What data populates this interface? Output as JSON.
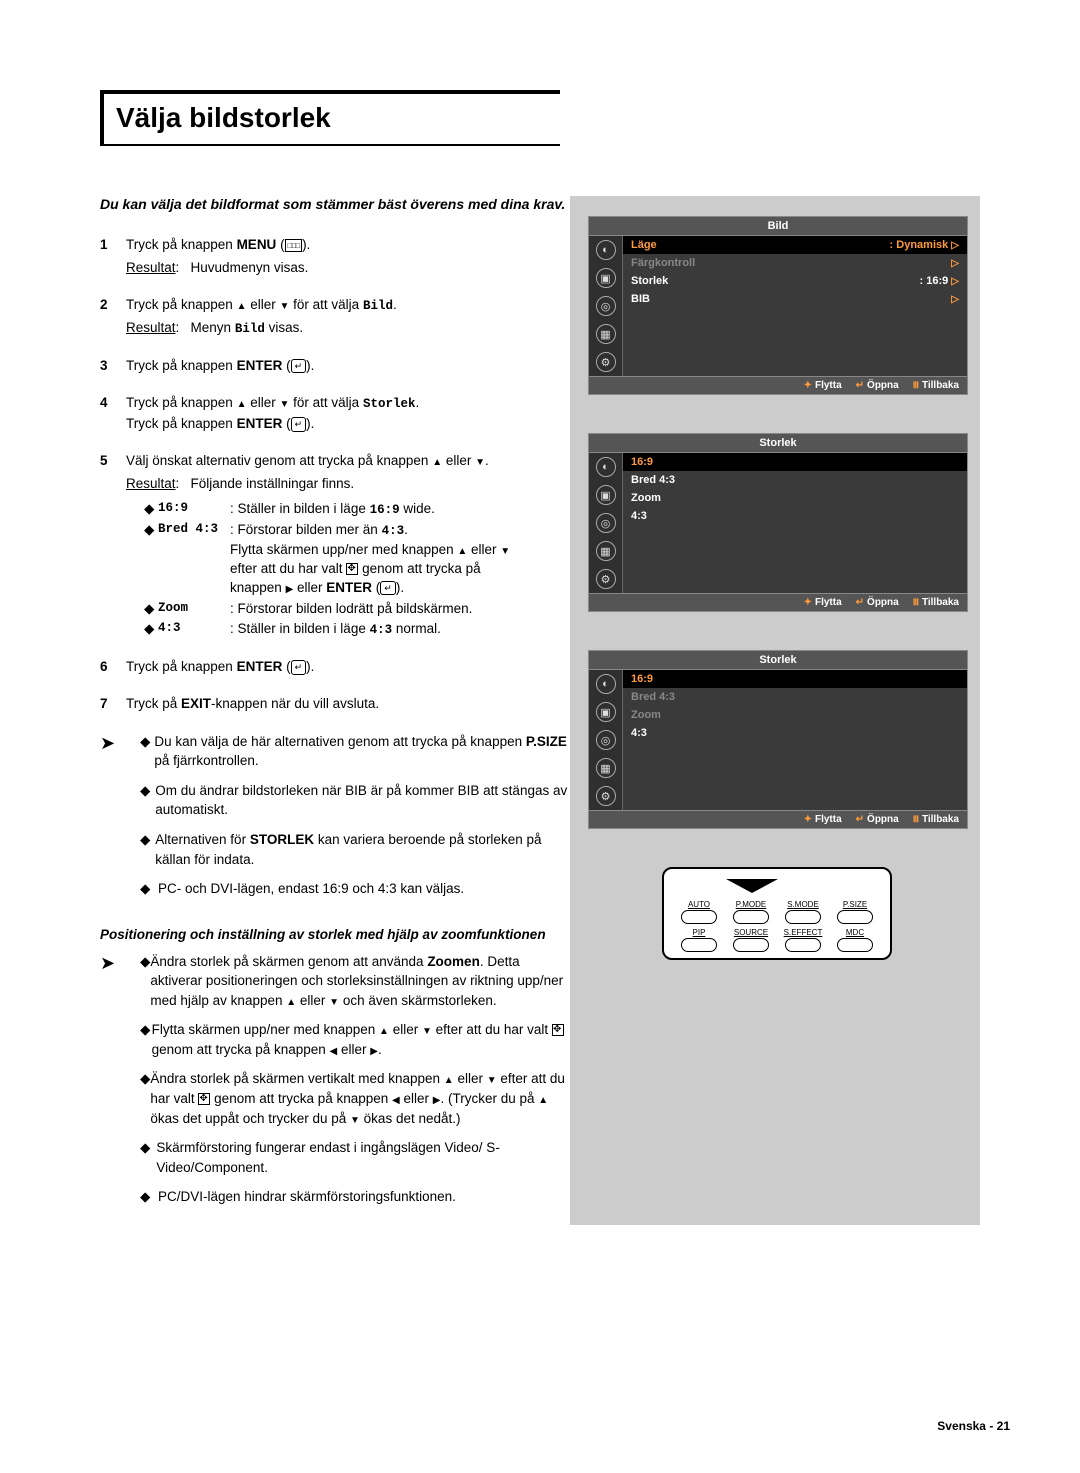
{
  "title": "Välja bildstorlek",
  "intro": "Du kan välja det bildformat som stämmer bäst överens med dina krav.",
  "steps": {
    "s1": {
      "num": "1",
      "l1a": "Tryck på knappen ",
      "l1b": "MENU",
      "l1c": " (",
      "l1d": ").",
      "res_lbl": "Resultat",
      "res": "Huvudmenyn visas."
    },
    "s2": {
      "num": "2",
      "l1a": "Tryck på knappen ",
      "l1b": " eller ",
      "l1c": " för att välja ",
      "l1d": "Bild",
      "l1e": ".",
      "res_lbl": "Resultat",
      "res_a": "Menyn ",
      "res_b": "Bild",
      "res_c": " visas."
    },
    "s3": {
      "num": "3",
      "l1a": "Tryck på knappen ",
      "l1b": "ENTER",
      "l1c": " (",
      "l1d": ")."
    },
    "s4": {
      "num": "4",
      "l1a": "Tryck på knappen ",
      "l1b": " eller ",
      "l1c": " för att välja ",
      "l1d": "Storlek",
      "l1e": ".",
      "l2a": "Tryck på knappen ",
      "l2b": "ENTER",
      "l2c": " (",
      "l2d": ")."
    },
    "s5": {
      "num": "5",
      "l1a": "Välj önskat alternativ genom att trycka på knappen ",
      "l1b": " eller ",
      "l1c": ".",
      "res_lbl": "Resultat",
      "res": "Följande inställningar finns.",
      "opts": {
        "o1": {
          "lbl": "16:9",
          "desc_a": ": Ställer in bilden i läge ",
          "desc_b": "16:9",
          "desc_c": " wide."
        },
        "o2": {
          "lbl": "Bred 4:3",
          "d1a": ": Förstorar bilden mer än ",
          "d1b": "4:3",
          "d1c": ".",
          "d2a": "Flytta skärmen upp/ner med knappen ",
          "d2b": " eller ",
          "d3a": "efter att du har valt ",
          "d3b": " genom att trycka på",
          "d4a": "knappen ",
          "d4b": " eller ",
          "d4c": "ENTER",
          "d4d": " (",
          "d4e": ")."
        },
        "o3": {
          "lbl": "Zoom",
          "desc": ": Förstorar bilden lodrätt på bildskärmen."
        },
        "o4": {
          "lbl": "4:3",
          "desc_a": ": Ställer in bilden i läge ",
          "desc_b": "4:3",
          "desc_c": " normal."
        }
      }
    },
    "s6": {
      "num": "6",
      "l1a": "Tryck på knappen ",
      "l1b": "ENTER",
      "l1c": " (",
      "l1d": ")."
    },
    "s7": {
      "num": "7",
      "l1a": "Tryck på ",
      "l1b": "EXIT",
      "l1c": "-knappen när du vill avsluta."
    }
  },
  "notes1": {
    "n1": {
      "a": "Du kan välja de här alternativen genom att trycka på knappen ",
      "b": "P.SIZE",
      "c": " på fjärrkontrollen."
    },
    "n2": "Om du ändrar bildstorleken när BIB är på kommer BIB att stängas av automatiskt.",
    "n3": {
      "a": "Alternativen för ",
      "b": "STORLEK",
      "c": " kan variera beroende på storleken på källan för indata."
    },
    "n4": "PC- och DVI-lägen, endast 16:9 och 4:3 kan väljas."
  },
  "subhead": "Positionering och inställning av storlek med hjälp av zoomfunktionen",
  "notes2": {
    "n1": {
      "a": "Ändra storlek på skärmen genom att använda ",
      "b": "Zoomen",
      "c": ". Detta aktiverar positioneringen och storleksinställningen av riktning upp/ner med hjälp av knappen ",
      "d": " eller ",
      "e": " och även skärmstorleken."
    },
    "n2": {
      "a": "Flytta skärmen upp/ner med knappen ",
      "b": " eller ",
      "c": " efter att du har valt ",
      "d": " genom att trycka på knappen ",
      "e": " eller ",
      "f": "."
    },
    "n3": {
      "a": "Ändra storlek på skärmen vertikalt med knappen ",
      "b": " eller ",
      "c": " efter att du har valt ",
      "d": " genom att trycka på knappen ",
      "e": " eller ",
      "f": ". (Trycker du på ",
      "g": " ökas det uppåt och trycker du på ",
      "h": " ökas det nedåt.)"
    },
    "n4": "Skärmförstoring fungerar endast i ingångslägen Video/ S-Video/Component.",
    "n5": "PC/DVI-lägen hindrar skärmförstoringsfunktionen."
  },
  "osd1": {
    "title": "Bild",
    "rows": [
      {
        "label": "Läge",
        "value": ": Dynamisk",
        "sel": true,
        "tri": true
      },
      {
        "label": "Färgkontroll",
        "value": "",
        "dim": true,
        "tri": true
      },
      {
        "label": "Storlek",
        "value": ": 16:9",
        "tri": true
      },
      {
        "label": "BIB",
        "value": "",
        "tri": true
      }
    ],
    "footer": {
      "move": "Flytta",
      "open": "Öppna",
      "back": "Tillbaka"
    }
  },
  "osd2": {
    "title": "Storlek",
    "rows": [
      {
        "label": "16:9",
        "sel": true
      },
      {
        "label": "Bred 4:3"
      },
      {
        "label": "Zoom"
      },
      {
        "label": "4:3"
      }
    ],
    "footer": {
      "move": "Flytta",
      "open": "Öppna",
      "back": "Tillbaka"
    }
  },
  "osd3": {
    "title": "Storlek",
    "rows": [
      {
        "label": "16:9",
        "sel": true
      },
      {
        "label": "Bred 4:3",
        "dim": true
      },
      {
        "label": "Zoom",
        "dim": true
      },
      {
        "label": "4:3"
      }
    ],
    "footer": {
      "move": "Flytta",
      "open": "Öppna",
      "back": "Tillbaka"
    }
  },
  "remote": {
    "row1": [
      "AUTO",
      "P.MODE",
      "S.MODE",
      "P.SIZE"
    ],
    "row2": [
      "PIP",
      "SOURCE",
      "S.EFFECT",
      "MDC"
    ]
  },
  "footer": "Svenska - 21",
  "colors": {
    "osd_bg": "#3a3a3a",
    "osd_title_bg": "#555555",
    "osd_accent": "#ff9a3c",
    "sidebar_bg": "#cccccc"
  }
}
